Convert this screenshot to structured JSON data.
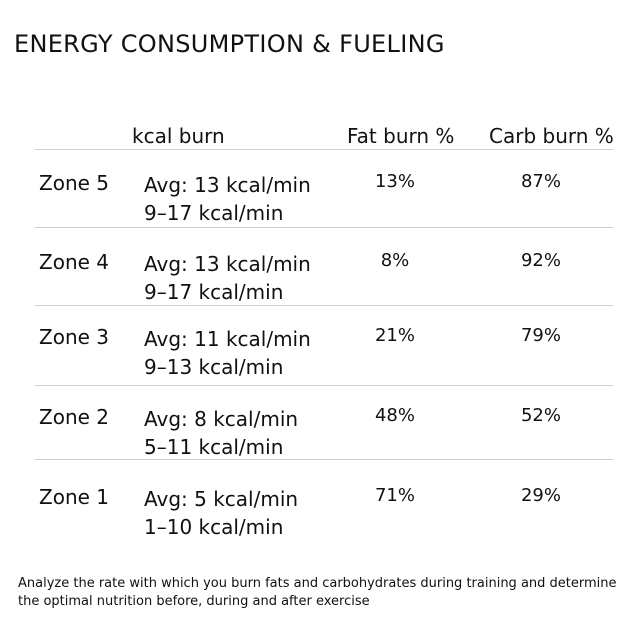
{
  "title": "ENERGY CONSUMPTION & FUELING",
  "table": {
    "headers": {
      "kcal": "kcal burn",
      "fat": "Fat burn %",
      "carb": "Carb burn %"
    },
    "rows": [
      {
        "zone": "Zone 5",
        "avg": "Avg: 13 kcal/min",
        "range": "9–17 kcal/min",
        "fat": "13%",
        "carb": "87%"
      },
      {
        "zone": "Zone 4",
        "avg": "Avg: 13 kcal/min",
        "range": "9–17 kcal/min",
        "fat": "8%",
        "carb": "92%"
      },
      {
        "zone": "Zone 3",
        "avg": "Avg: 11 kcal/min",
        "range": "9–13 kcal/min",
        "fat": "21%",
        "carb": "79%"
      },
      {
        "zone": "Zone 2",
        "avg": "Avg: 8 kcal/min",
        "range": "5–11 kcal/min",
        "fat": "48%",
        "carb": "52%"
      },
      {
        "zone": "Zone 1",
        "avg": "Avg: 5 kcal/min",
        "range": "1–10 kcal/min",
        "fat": "71%",
        "carb": "29%"
      }
    ]
  },
  "footer": "Analyze the rate with which you burn fats and carbohydrates during training and determine the optimal nutrition before, during and after exercise"
}
